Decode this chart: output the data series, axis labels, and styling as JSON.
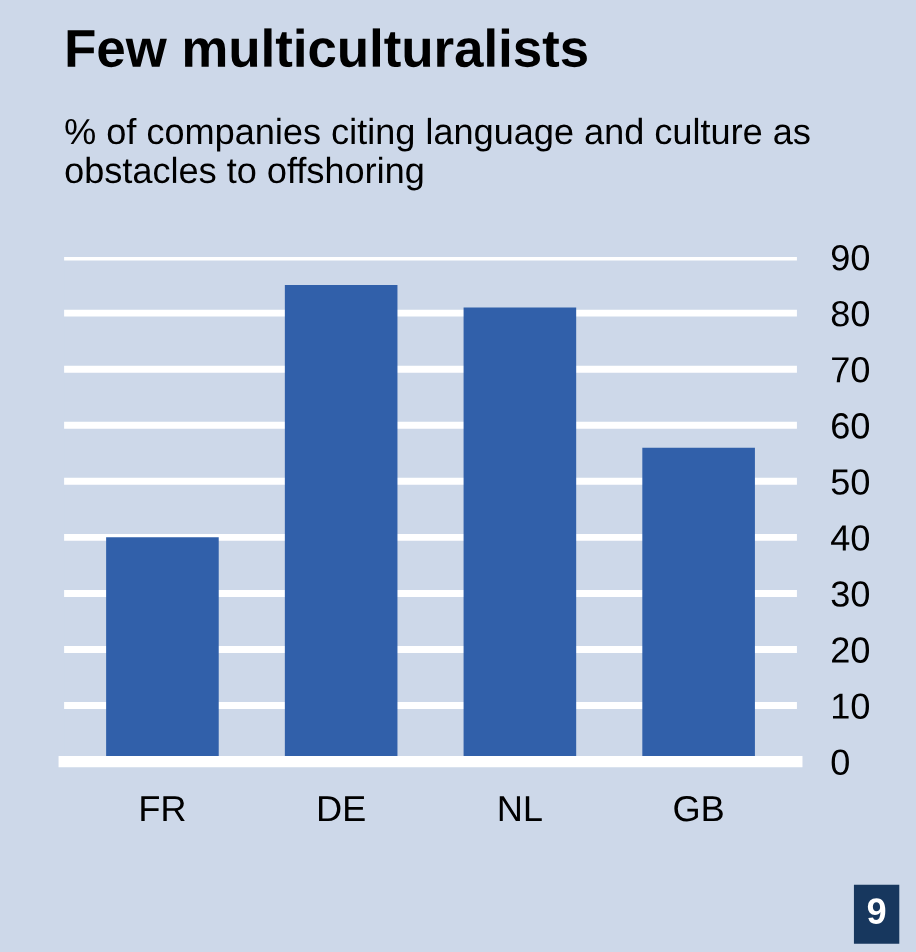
{
  "chart_data": {
    "type": "bar",
    "title": "Few multiculturalists",
    "subtitle": "% of companies citing language and culture as obstacles to offshoring",
    "categories": [
      "FR",
      "DE",
      "NL",
      "GB"
    ],
    "values": [
      40,
      85,
      81,
      56
    ],
    "color": "#3160aa",
    "ylim": [
      0,
      90
    ],
    "yticks": [
      0,
      10,
      20,
      30,
      40,
      50,
      60,
      70,
      80,
      90
    ],
    "grid": "y",
    "annotations": [
      "9"
    ]
  }
}
